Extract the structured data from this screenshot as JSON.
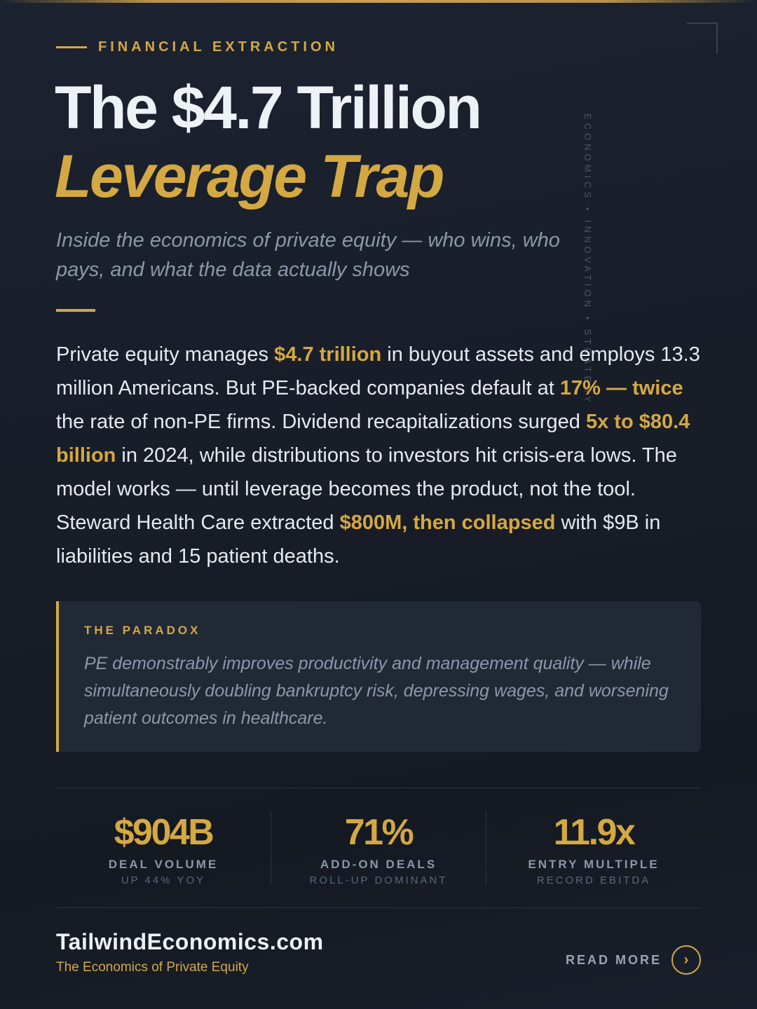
{
  "side_label": "ECONOMICS • INNOVATION • STRATEGY",
  "eyebrow": "FINANCIAL EXTRACTION",
  "title": {
    "line1": "The $4.7 Trillion",
    "line2": "Leverage Trap"
  },
  "subtitle": "Inside the economics of private equity — who wins, who pays, and what the data actually shows",
  "body": {
    "s1": "Private equity manages ",
    "h1": "$4.7 trillion",
    "s2": " in buyout assets and employs 13.3 million Americans. But PE-backed companies default at ",
    "h2": "17% — twice",
    "s3": " the rate of non-PE firms. Dividend recapitalizations surged ",
    "h3": "5x to $80.4 billion",
    "s4": " in 2024, while distributions to investors hit crisis-era lows. The model works — until leverage becomes the product, not the tool. Steward Health Care extracted ",
    "h4": "$800M, then collapsed",
    "s5": " with $9B in liabilities and 15 patient deaths."
  },
  "paradox": {
    "label": "THE PARADOX",
    "text": "PE demonstrably improves productivity and management quality — while simultaneously doubling bankruptcy risk, depressing wages, and worsening patient outcomes in healthcare."
  },
  "stats": [
    {
      "value": "$904B",
      "label": "DEAL VOLUME",
      "sub": "UP 44% YOY"
    },
    {
      "value": "71%",
      "label": "ADD-ON DEALS",
      "sub": "ROLL-UP DOMINANT"
    },
    {
      "value": "11.9x",
      "label": "ENTRY MULTIPLE",
      "sub": "RECORD EBITDA"
    }
  ],
  "footer": {
    "brand": "TailwindEconomics.com",
    "tagline": "The Economics of Private Equity",
    "cta_label": "READ MORE",
    "cta_icon": "›"
  },
  "colors": {
    "accent": "#d4a843",
    "background": "#171c26",
    "text": "#e8ecf2",
    "muted": "#8c97a9"
  }
}
